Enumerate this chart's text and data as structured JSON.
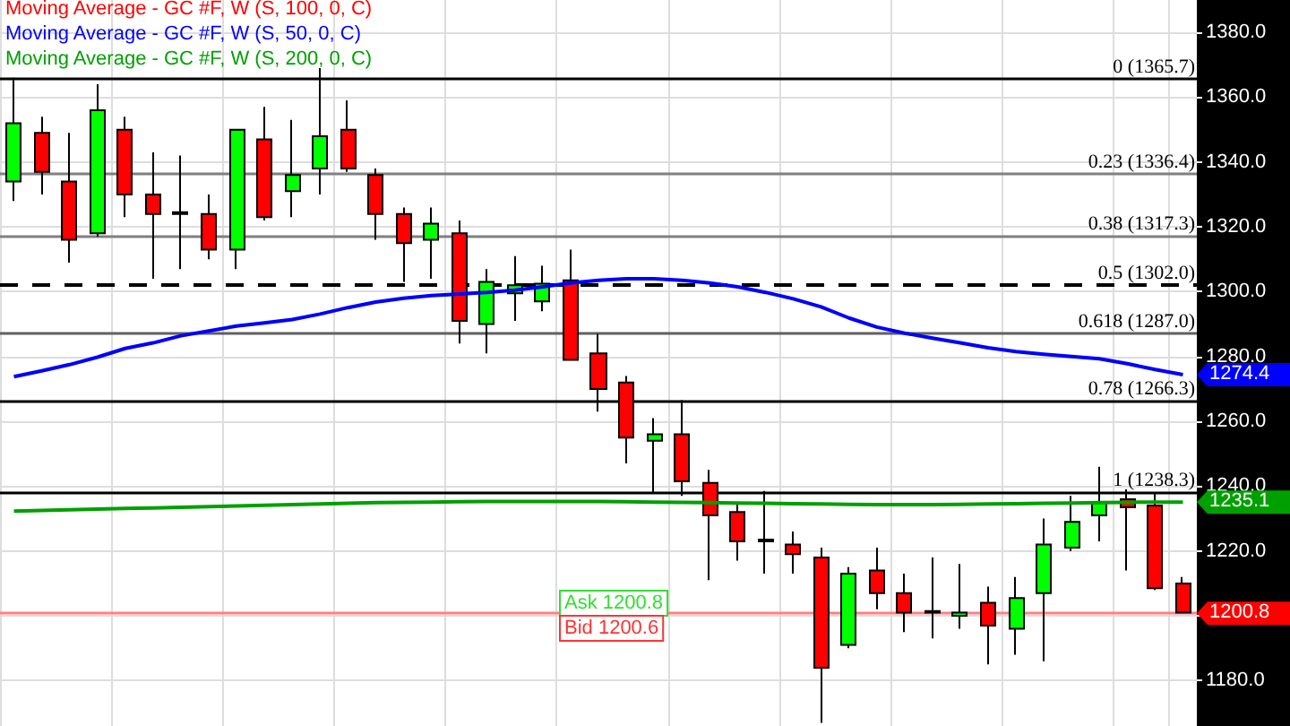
{
  "chart_data": {
    "type": "candlestick",
    "categories": [
      null,
      null,
      null,
      null,
      null,
      null,
      null,
      null,
      null,
      null,
      null,
      null,
      null,
      null,
      null,
      null,
      null,
      null,
      null,
      null,
      null,
      null,
      null,
      null,
      null,
      null,
      null,
      null,
      null,
      null,
      null,
      null,
      null,
      null,
      null,
      null,
      null,
      null,
      null,
      null,
      null,
      null,
      null
    ],
    "ohlc": [
      [
        1334,
        1366,
        1328,
        1352
      ],
      [
        1349,
        1354,
        1330,
        1337
      ],
      [
        1334,
        1349,
        1309,
        1316
      ],
      [
        1318,
        1364,
        1317,
        1356
      ],
      [
        1350,
        1354,
        1323,
        1330
      ],
      [
        1330,
        1343,
        1304,
        1324
      ],
      [
        1324.5,
        1342,
        1307,
        1324
      ],
      [
        1324,
        1330,
        1310,
        1313
      ],
      [
        1313,
        1350,
        1307,
        1350
      ],
      [
        1347,
        1357,
        1322,
        1323
      ],
      [
        1331,
        1353,
        1323,
        1336
      ],
      [
        1338,
        1369,
        1330,
        1348
      ],
      [
        1350,
        1359,
        1337,
        1338
      ],
      [
        1336,
        1338,
        1316,
        1324
      ],
      [
        1324,
        1326,
        1303,
        1315
      ],
      [
        1316,
        1326,
        1304,
        1321
      ],
      [
        1318,
        1322,
        1284,
        1291
      ],
      [
        1290,
        1307,
        1281,
        1303
      ],
      [
        1299.5,
        1311,
        1291,
        1302
      ],
      [
        1297,
        1308,
        1294,
        1302.5
      ],
      [
        1303.5,
        1313,
        1279,
        1279
      ],
      [
        1281,
        1287,
        1263,
        1270
      ],
      [
        1272,
        1274,
        1247,
        1255
      ],
      [
        1254,
        1261,
        1238,
        1256
      ],
      [
        1256,
        1266.5,
        1237,
        1241.5
      ],
      [
        1241,
        1245,
        1211,
        1231
      ],
      [
        1232,
        1235,
        1217,
        1223
      ],
      [
        1223,
        1238.5,
        1213,
        1223.5
      ],
      [
        1222,
        1226,
        1213,
        1219
      ],
      [
        1218,
        1221,
        1167,
        1184
      ],
      [
        1191,
        1215,
        1190,
        1213
      ],
      [
        1214,
        1221,
        1202,
        1207
      ],
      [
        1207,
        1213,
        1195,
        1201
      ],
      [
        1201,
        1218,
        1193,
        1201.5
      ],
      [
        1200,
        1216,
        1196,
        1201
      ],
      [
        1204,
        1209,
        1185,
        1197
      ],
      [
        1196,
        1212,
        1188,
        1205.5
      ],
      [
        1207,
        1230,
        1186,
        1222
      ],
      [
        1221,
        1237,
        1220,
        1229
      ],
      [
        1231,
        1246,
        1223,
        1235
      ],
      [
        1236,
        1239,
        1214,
        1233.5
      ],
      [
        1234,
        1238,
        1208,
        1208.5
      ],
      [
        1210,
        1212,
        1201,
        1201
      ]
    ],
    "colors": [
      "#00ff00",
      "#ff0000",
      "#ff0000",
      "#00ff00",
      "#ff0000",
      "#ff0000",
      "#ff0000",
      "#ff0000",
      "#00ff00",
      "#ff0000",
      "#00ff00",
      "#00ff00",
      "#ff0000",
      "#ff0000",
      "#ff0000",
      "#00ff00",
      "#ff0000",
      "#00ff00",
      "#00ff00",
      "#00ff00",
      "#ff0000",
      "#ff0000",
      "#ff0000",
      "#00ff00",
      "#ff0000",
      "#ff0000",
      "#ff0000",
      "#00ff00",
      "#ff0000",
      "#ff0000",
      "#00ff00",
      "#ff0000",
      "#ff0000",
      "#00ff00",
      "#00ff00",
      "#ff0000",
      "#00ff00",
      "#00ff00",
      "#00ff00",
      "#00ff00",
      "#ff0000",
      "#ff0000",
      "#ff0000"
    ],
    "series": [
      {
        "type": "line",
        "name": "Moving Average - GC #F, W (S, 100, 0, C)",
        "color": "#ff0000",
        "values": [
          null,
          null,
          null,
          null,
          null,
          null,
          null,
          null,
          null,
          null,
          null,
          null,
          null,
          null,
          null,
          null,
          null,
          null,
          null,
          null,
          null,
          null,
          null,
          null,
          null,
          null,
          null,
          null,
          null,
          null,
          null,
          null,
          null,
          null,
          null,
          null,
          null,
          null,
          null,
          null,
          null,
          null,
          null
        ]
      },
      {
        "type": "line",
        "name": "Moving Average - GC #F, W (S, 50, 0, C)",
        "color": "#0000ff",
        "values": [
          1273.8,
          1275.6,
          1277.5,
          1279.8,
          1282.5,
          1284.2,
          1286.4,
          1287.9,
          1289.4,
          1290.4,
          1291.4,
          1293.1,
          1295.1,
          1296.8,
          1298.0,
          1298.8,
          1299.3,
          1299.8,
          1300.5,
          1301.5,
          1302.7,
          1303.5,
          1304.0,
          1304.0,
          1303.5,
          1302.7,
          1301.5,
          1299.8,
          1297.8,
          1295.3,
          1291.9,
          1289.1,
          1287.2,
          1285.7,
          1284.2,
          1282.7,
          1281.5,
          1280.7,
          1280.0,
          1279.3,
          1277.8,
          1276.0,
          1274.4
        ],
        "value_labels": [
          null,
          null,
          null,
          null,
          null,
          null,
          null,
          null,
          null,
          null,
          null,
          null,
          null,
          null,
          null,
          null,
          null,
          null,
          null,
          null,
          null,
          null,
          null,
          null,
          null,
          null,
          null,
          null,
          null,
          null,
          null,
          null,
          null,
          null,
          null,
          null,
          null,
          null,
          null,
          null,
          null,
          null,
          "1274.4"
        ]
      },
      {
        "type": "line",
        "name": "Moving Average - GC #F, W (S, 200, 0, C)",
        "color": "#00a000",
        "values": [
          1232.3,
          1232.5,
          1232.7,
          1232.9,
          1233.1,
          1233.3,
          1233.5,
          1233.7,
          1233.9,
          1234.1,
          1234.3,
          1234.5,
          1234.7,
          1234.9,
          1235.0,
          1235.1,
          1235.2,
          1235.3,
          1235.3,
          1235.3,
          1235.3,
          1235.3,
          1235.2,
          1235.1,
          1235.0,
          1234.9,
          1234.8,
          1234.7,
          1234.6,
          1234.5,
          1234.4,
          1234.3,
          1234.3,
          1234.3,
          1234.4,
          1234.5,
          1234.6,
          1234.7,
          1234.8,
          1234.9,
          1235.0,
          1235.1,
          1235.1
        ],
        "value_labels": [
          null,
          null,
          null,
          null,
          null,
          null,
          null,
          null,
          null,
          null,
          null,
          null,
          null,
          null,
          null,
          null,
          null,
          null,
          null,
          null,
          null,
          null,
          null,
          null,
          null,
          null,
          null,
          null,
          null,
          null,
          null,
          null,
          null,
          null,
          null,
          null,
          null,
          null,
          null,
          null,
          null,
          null,
          "1235.1"
        ]
      }
    ],
    "ylim": [
      1166,
      1390
    ],
    "yticks": [
      {
        "value": 1180,
        "label": "1180.0"
      },
      {
        "value": 1200,
        "label": null
      },
      {
        "value": 1220,
        "label": "1220.0"
      },
      {
        "value": 1240,
        "label": "1240.0"
      },
      {
        "value": 1260,
        "label": "1260.0"
      },
      {
        "value": 1280,
        "label": "1280.0"
      },
      {
        "value": 1300,
        "label": "1300.0"
      },
      {
        "value": 1320,
        "label": "1320.0"
      },
      {
        "value": 1340,
        "label": "1340.0"
      },
      {
        "value": 1360,
        "label": "1360.0"
      },
      {
        "value": 1380,
        "label": "1380.0"
      }
    ],
    "ref_lines": [
      {
        "axis": "y",
        "value": 1365.7,
        "label": "0 (1365.7)",
        "color": "#000000"
      },
      {
        "axis": "y",
        "value": 1336.4,
        "label": "0.23 (1336.4)",
        "color": "#808080"
      },
      {
        "axis": "y",
        "value": 1317.3,
        "label": "0.38 (1317.3)",
        "color": "#808080"
      },
      {
        "axis": "y",
        "value": 1302.0,
        "label": "0.5 (1302.0)",
        "color": "#000000",
        "line_style": "dashed"
      },
      {
        "axis": "y",
        "value": 1287.0,
        "label": "0.618 (1287.0)",
        "color": "#606060"
      },
      {
        "axis": "y",
        "value": 1266.3,
        "label": "0.78 (1266.3)",
        "color": "#000000"
      },
      {
        "axis": "y",
        "value": 1238.3,
        "label": "1 (1238.3)",
        "color": "#000000"
      },
      {
        "axis": "y",
        "value": 1200.8,
        "label": "1200.8",
        "color": "#ff8080"
      }
    ],
    "annotations": [
      "Ask 1200.8",
      "Bid 1200.6"
    ],
    "grid": true,
    "legend": "top left",
    "tick_labels": "y"
  }
}
